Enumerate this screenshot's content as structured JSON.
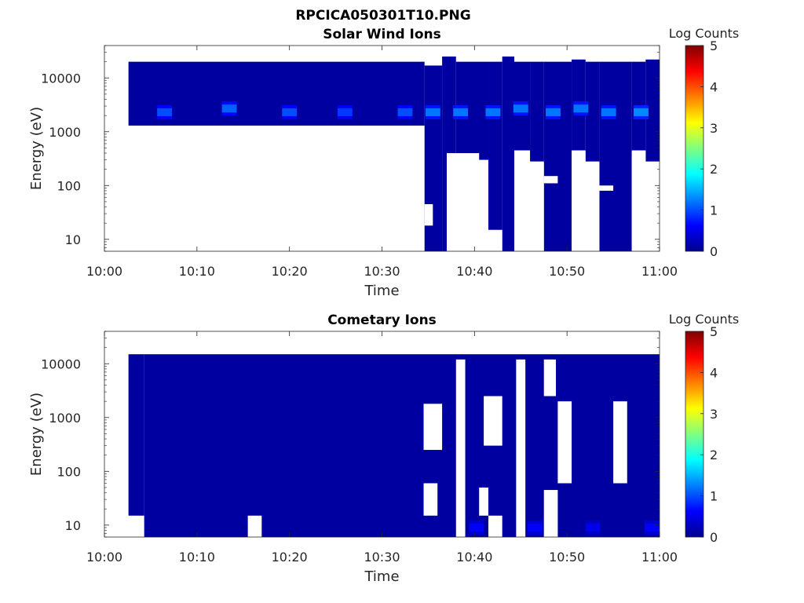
{
  "figure": {
    "title": "RPCICA050301T10.PNG"
  },
  "colors": {
    "colormap": [
      "#00008f",
      "#0000ff",
      "#00ffff",
      "#ffff00",
      "#ff0000",
      "#800000"
    ],
    "background_fill": "#00008f"
  },
  "chart_data": [
    {
      "type": "heatmap",
      "title": "Solar Wind Ions",
      "xlabel": "Time",
      "ylabel": "Energy (eV)",
      "y_scale": "log",
      "xlim": [
        "10:00",
        "11:00"
      ],
      "ylim": [
        6,
        40000
      ],
      "x_ticks": [
        "10:00",
        "10:10",
        "10:20",
        "10:30",
        "10:40",
        "10:50",
        "11:00"
      ],
      "y_ticks": [
        10,
        100,
        1000,
        10000
      ],
      "y_tick_labels": [
        "10",
        "100",
        "1000",
        "10000"
      ],
      "colorbar": {
        "label": "Log Counts",
        "range": [
          0,
          5
        ],
        "ticks": [
          "0",
          "1",
          "2",
          "3",
          "4",
          "5"
        ]
      },
      "coverage": [
        {
          "start": "10:02.6",
          "end": "10:34.6",
          "e_low": 1300,
          "e_high": 20000,
          "value": 0.1
        },
        {
          "start": "10:34.6",
          "end": "10:36.5",
          "e_low": 6,
          "e_high": 17000,
          "value": 0.1
        },
        {
          "start": "10:36.5",
          "end": "10:38.0",
          "e_low": 6,
          "e_high": 25000,
          "value": 0.1
        },
        {
          "start": "10:38.0",
          "end": "10:41.5",
          "e_low": 300,
          "e_high": 20000,
          "value": 0.1
        },
        {
          "start": "10:41.5",
          "end": "10:43.0",
          "e_low": 6,
          "e_high": 20000,
          "value": 0.1
        },
        {
          "start": "10:43.0",
          "end": "10:44.3",
          "e_low": 6,
          "e_high": 25000,
          "value": 0.1
        },
        {
          "start": "10:44.3",
          "end": "10:46.0",
          "e_low": 450,
          "e_high": 20000,
          "value": 0.1
        },
        {
          "start": "10:46.0",
          "end": "10:47.5",
          "e_low": 280,
          "e_high": 20000,
          "value": 0.1
        },
        {
          "start": "10:47.5",
          "end": "10:50.5",
          "e_low": 6,
          "e_high": 20000,
          "value": 0.1
        },
        {
          "start": "10:50.5",
          "end": "10:52.0",
          "e_low": 450,
          "e_high": 22000,
          "value": 0.1
        },
        {
          "start": "10:52.0",
          "end": "10:53.5",
          "e_low": 280,
          "e_high": 20000,
          "value": 0.1
        },
        {
          "start": "10:53.5",
          "end": "10:57.0",
          "e_low": 6,
          "e_high": 20000,
          "value": 0.1
        },
        {
          "start": "10:57.0",
          "end": "10:58.5",
          "e_low": 450,
          "e_high": 20000,
          "value": 0.1
        },
        {
          "start": "10:58.5",
          "end": "11:00",
          "e_low": 280,
          "e_high": 22000,
          "value": 0.1
        }
      ],
      "peaks": [
        {
          "time": "10:06.5",
          "energy": 2300,
          "value": 1.0
        },
        {
          "time": "10:13.5",
          "energy": 2700,
          "value": 1.1
        },
        {
          "time": "10:20.0",
          "energy": 2300,
          "value": 1.0
        },
        {
          "time": "10:26.0",
          "energy": 2300,
          "value": 0.9
        },
        {
          "time": "10:32.5",
          "energy": 2300,
          "value": 1.0
        },
        {
          "time": "10:35.5",
          "energy": 2300,
          "value": 1.2
        },
        {
          "time": "10:38.5",
          "energy": 2300,
          "value": 1.2
        },
        {
          "time": "10:42.0",
          "energy": 2300,
          "value": 1.2
        },
        {
          "time": "10:45.0",
          "energy": 2700,
          "value": 1.2
        },
        {
          "time": "10:48.5",
          "energy": 2300,
          "value": 1.2
        },
        {
          "time": "10:51.5",
          "energy": 2700,
          "value": 1.2
        },
        {
          "time": "10:54.5",
          "energy": 2300,
          "value": 1.2
        },
        {
          "time": "10:58.0",
          "energy": 2300,
          "value": 1.3
        }
      ],
      "gaps": [
        {
          "start": "10:37.0",
          "end": "10:40.5",
          "e_low": 6,
          "e_high": 400
        },
        {
          "start": "10:40.5",
          "end": "10:41.5",
          "e_low": 6,
          "e_high": 270
        },
        {
          "start": "10:41.5",
          "end": "10:43.0",
          "e_low": 6,
          "e_high": 15
        },
        {
          "start": "10:44.3",
          "end": "10:46.0",
          "e_low": 6,
          "e_high": 430
        },
        {
          "start": "10:46.0",
          "end": "10:47.5",
          "e_low": 6,
          "e_high": 270
        },
        {
          "start": "10:47.5",
          "end": "10:49.0",
          "e_low": 110,
          "e_high": 150
        },
        {
          "start": "10:50.5",
          "end": "10:52.0",
          "e_low": 6,
          "e_high": 430
        },
        {
          "start": "10:52.0",
          "end": "10:53.5",
          "e_low": 6,
          "e_high": 270
        },
        {
          "start": "10:53.5",
          "end": "10:55.0",
          "e_low": 80,
          "e_high": 100
        },
        {
          "start": "10:57.0",
          "end": "10:58.5",
          "e_low": 6,
          "e_high": 430
        },
        {
          "start": "10:58.5",
          "end": "11:00",
          "e_low": 6,
          "e_high": 270
        },
        {
          "start": "10:34.6",
          "end": "10:35.5",
          "e_low": 18,
          "e_high": 45
        }
      ]
    },
    {
      "type": "heatmap",
      "title": "Cometary Ions",
      "xlabel": "Time",
      "ylabel": "Energy (eV)",
      "y_scale": "log",
      "xlim": [
        "10:00",
        "11:00"
      ],
      "ylim": [
        6,
        40000
      ],
      "x_ticks": [
        "10:00",
        "10:10",
        "10:20",
        "10:30",
        "10:40",
        "10:50",
        "11:00"
      ],
      "y_ticks": [
        10,
        100,
        1000,
        10000
      ],
      "y_tick_labels": [
        "10",
        "100",
        "1000",
        "10000"
      ],
      "colorbar": {
        "label": "Log Counts",
        "range": [
          0,
          5
        ],
        "ticks": [
          "0",
          "1",
          "2",
          "3",
          "4",
          "5"
        ]
      },
      "coverage": [
        {
          "start": "10:02.6",
          "end": "10:04.3",
          "e_low": 15,
          "e_high": 15000,
          "value": 0.1
        },
        {
          "start": "10:04.3",
          "end": "11:00",
          "e_low": 6,
          "e_high": 15000,
          "value": 0.1
        }
      ],
      "peaks": [
        {
          "time": "10:40.2",
          "energy": 9,
          "value": 0.6
        },
        {
          "time": "10:46.5",
          "energy": 9,
          "value": 0.6
        },
        {
          "time": "10:52.8",
          "energy": 9,
          "value": 0.5
        },
        {
          "time": "10:59.2",
          "energy": 9,
          "value": 0.6
        }
      ],
      "gaps": [
        {
          "start": "10:15.5",
          "end": "10:17.0",
          "e_low": 6,
          "e_high": 15
        },
        {
          "start": "10:34.5",
          "end": "10:36.0",
          "e_low": 15,
          "e_high": 60
        },
        {
          "start": "10:34.5",
          "end": "10:36.5",
          "e_low": 250,
          "e_high": 1800
        },
        {
          "start": "10:40.5",
          "end": "10:41.5",
          "e_low": 15,
          "e_high": 50
        },
        {
          "start": "10:41.5",
          "end": "10:43.0",
          "e_low": 6,
          "e_high": 15
        },
        {
          "start": "10:41.0",
          "end": "10:43.0",
          "e_low": 300,
          "e_high": 2500
        },
        {
          "start": "10:47.5",
          "end": "10:49.0",
          "e_low": 6,
          "e_high": 45
        },
        {
          "start": "10:49.0",
          "end": "10:50.5",
          "e_low": 60,
          "e_high": 2000
        },
        {
          "start": "10:55.0",
          "end": "10:56.5",
          "e_low": 60,
          "e_high": 2000
        },
        {
          "start": "10:38.0",
          "end": "10:39.0",
          "e_low": 6,
          "e_high": 12000
        },
        {
          "start": "10:44.5",
          "end": "10:45.5",
          "e_low": 6,
          "e_high": 12000
        },
        {
          "start": "10:47.5",
          "end": "10:48.8",
          "e_low": 2500,
          "e_high": 12000
        }
      ]
    }
  ]
}
